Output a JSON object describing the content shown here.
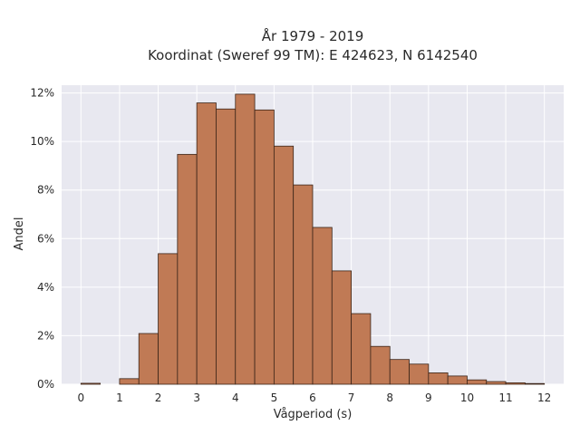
{
  "chart_data": {
    "type": "bar",
    "title": "År 1979 - 2019",
    "subtitle": "Koordinat (Sweref 99 TM): E 424623, N 6142540",
    "xlabel": "Vågperiod (s)",
    "ylabel": "Andel",
    "xlim": [
      -0.5,
      12.5
    ],
    "ylim": [
      0,
      0.1232
    ],
    "x_ticks": [
      0,
      1,
      2,
      3,
      4,
      5,
      6,
      7,
      8,
      9,
      10,
      11,
      12
    ],
    "y_ticks": [
      0,
      0.02,
      0.04,
      0.06,
      0.08,
      0.1,
      0.12
    ],
    "y_tick_labels": [
      "0%",
      "2%",
      "4%",
      "6%",
      "8%",
      "10%",
      "12%"
    ],
    "bin_width": 0.5,
    "bins": [
      {
        "x0": 0.0,
        "value": 0.0004
      },
      {
        "x0": 0.5,
        "value": 0.0
      },
      {
        "x0": 1.0,
        "value": 0.0023
      },
      {
        "x0": 1.5,
        "value": 0.0209
      },
      {
        "x0": 2.0,
        "value": 0.0538
      },
      {
        "x0": 2.5,
        "value": 0.0947
      },
      {
        "x0": 3.0,
        "value": 0.1159
      },
      {
        "x0": 3.5,
        "value": 0.1134
      },
      {
        "x0": 4.0,
        "value": 0.1195
      },
      {
        "x0": 4.5,
        "value": 0.113
      },
      {
        "x0": 5.0,
        "value": 0.0981
      },
      {
        "x0": 5.5,
        "value": 0.0821
      },
      {
        "x0": 6.0,
        "value": 0.0646
      },
      {
        "x0": 6.5,
        "value": 0.0467
      },
      {
        "x0": 7.0,
        "value": 0.0291
      },
      {
        "x0": 7.5,
        "value": 0.0156
      },
      {
        "x0": 8.0,
        "value": 0.0102
      },
      {
        "x0": 8.5,
        "value": 0.0083
      },
      {
        "x0": 9.0,
        "value": 0.0047
      },
      {
        "x0": 9.5,
        "value": 0.0034
      },
      {
        "x0": 10.0,
        "value": 0.0018
      },
      {
        "x0": 10.5,
        "value": 0.0011
      },
      {
        "x0": 11.0,
        "value": 0.0006
      },
      {
        "x0": 11.5,
        "value": 0.0003
      }
    ],
    "grid": true,
    "legend": false,
    "colors": {
      "bar_fill": "#c07a55",
      "bar_stroke": "#3a2418",
      "plot_bg": "#e8e8f0",
      "grid": "#ffffff"
    }
  }
}
